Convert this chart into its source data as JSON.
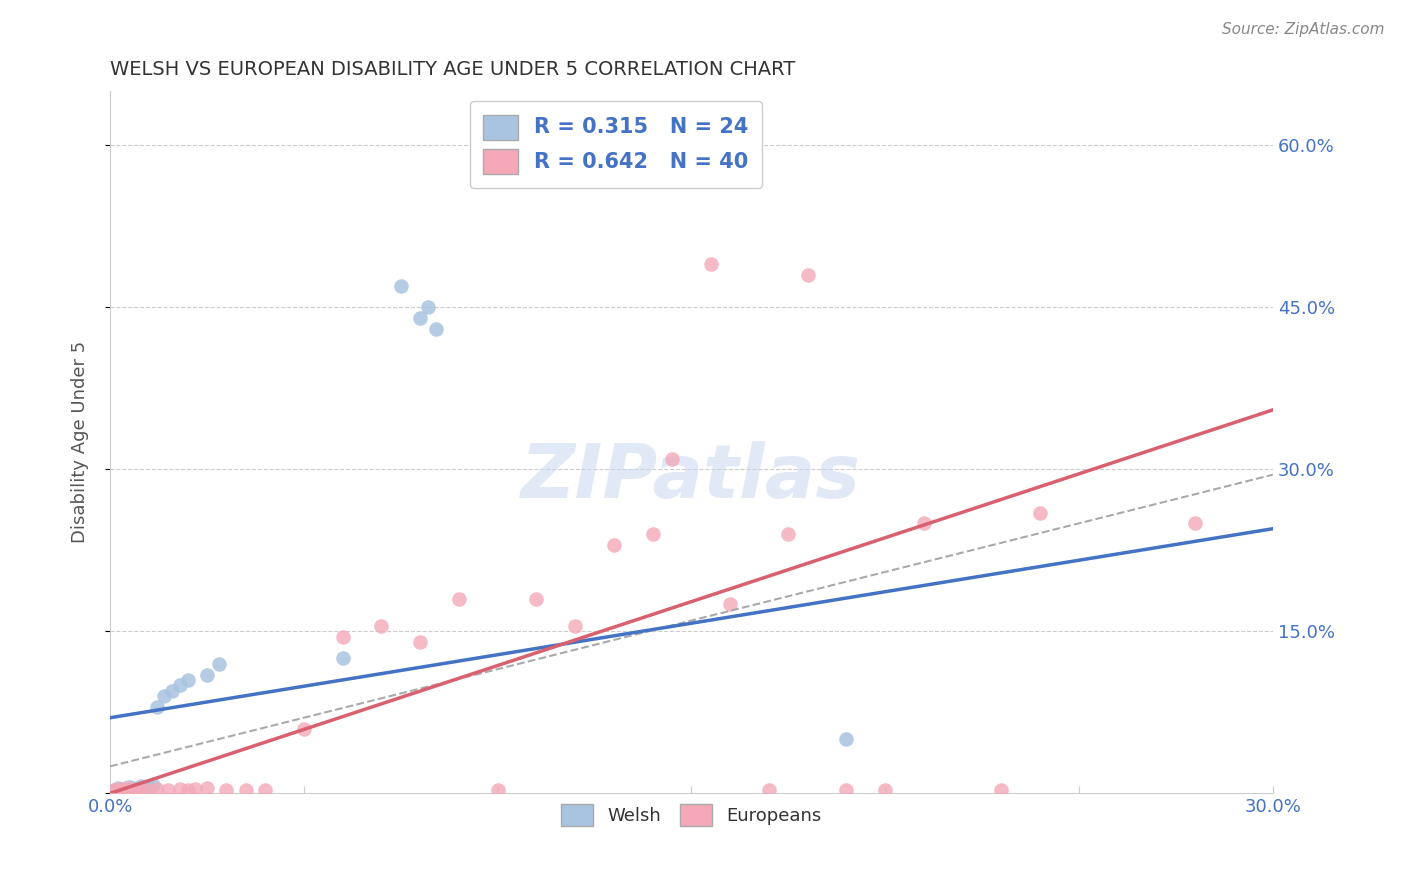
{
  "title": "WELSH VS EUROPEAN DISABILITY AGE UNDER 5 CORRELATION CHART",
  "source": "Source: ZipAtlas.com",
  "ylabel": "Disability Age Under 5",
  "xlim": [
    0.0,
    0.3
  ],
  "ylim": [
    0.0,
    0.65
  ],
  "x_ticks": [
    0.0,
    0.05,
    0.1,
    0.15,
    0.2,
    0.25,
    0.3
  ],
  "x_tick_labels": [
    "0.0%",
    "",
    "",
    "",
    "",
    "",
    "30.0%"
  ],
  "y_ticks": [
    0.0,
    0.15,
    0.3,
    0.45,
    0.6
  ],
  "y_tick_labels": [
    "",
    "15.0%",
    "30.0%",
    "45.0%",
    "60.0%"
  ],
  "welsh_R": "0.315",
  "welsh_N": "24",
  "euro_R": "0.642",
  "euro_N": "40",
  "welsh_color": "#a8c4e0",
  "euro_color": "#f4a8b8",
  "welsh_line_color": "#4472c4",
  "euro_line_color": "#d9606e",
  "dashed_line_color": "#aaaaaa",
  "title_color": "#333333",
  "axis_label_color": "#4472c4",
  "legend_text_color": "#4472c4",
  "watermark_text": "ZIPatlas",
  "welsh_line": [
    0.0,
    0.07,
    0.3,
    0.245
  ],
  "euro_line": [
    0.0,
    0.0,
    0.3,
    0.355
  ],
  "dash_line": [
    0.0,
    0.025,
    0.3,
    0.295
  ],
  "welsh_x": [
    0.001,
    0.002,
    0.003,
    0.004,
    0.005,
    0.006,
    0.007,
    0.008,
    0.009,
    0.01,
    0.011,
    0.012,
    0.014,
    0.016,
    0.018,
    0.02,
    0.025,
    0.028,
    0.06,
    0.075,
    0.08,
    0.082,
    0.084,
    0.19
  ],
  "welsh_y": [
    0.003,
    0.005,
    0.004,
    0.003,
    0.006,
    0.005,
    0.004,
    0.007,
    0.005,
    0.006,
    0.008,
    0.08,
    0.09,
    0.095,
    0.1,
    0.105,
    0.11,
    0.12,
    0.125,
    0.47,
    0.44,
    0.45,
    0.43,
    0.05
  ],
  "euro_x": [
    0.001,
    0.002,
    0.003,
    0.004,
    0.005,
    0.006,
    0.007,
    0.008,
    0.01,
    0.012,
    0.015,
    0.018,
    0.02,
    0.022,
    0.025,
    0.03,
    0.035,
    0.04,
    0.05,
    0.06,
    0.07,
    0.08,
    0.09,
    0.1,
    0.11,
    0.12,
    0.13,
    0.14,
    0.145,
    0.155,
    0.16,
    0.17,
    0.175,
    0.18,
    0.19,
    0.2,
    0.21,
    0.23,
    0.24,
    0.28
  ],
  "euro_y": [
    0.003,
    0.004,
    0.003,
    0.005,
    0.003,
    0.004,
    0.003,
    0.004,
    0.003,
    0.004,
    0.003,
    0.004,
    0.003,
    0.004,
    0.005,
    0.003,
    0.003,
    0.003,
    0.06,
    0.145,
    0.155,
    0.14,
    0.18,
    0.003,
    0.18,
    0.155,
    0.23,
    0.24,
    0.31,
    0.49,
    0.175,
    0.003,
    0.24,
    0.48,
    0.003,
    0.003,
    0.25,
    0.003,
    0.26,
    0.25
  ]
}
